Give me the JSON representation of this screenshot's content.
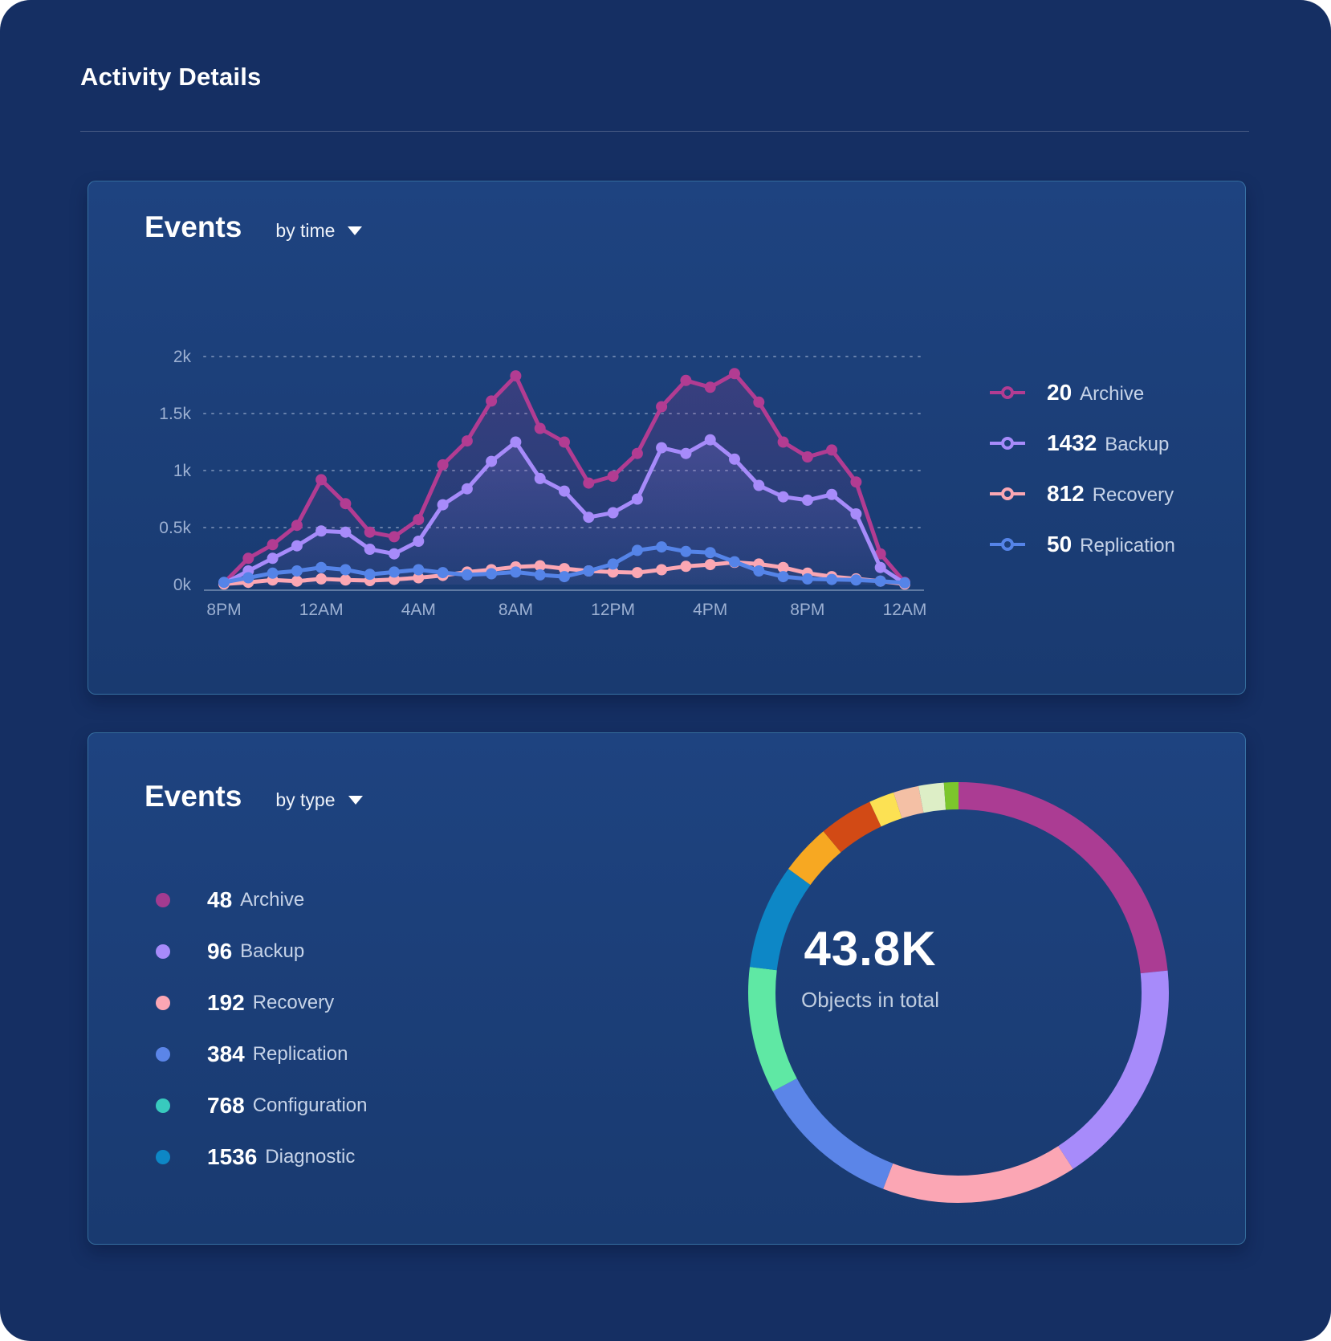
{
  "header": {
    "title": "Activity Details"
  },
  "events_by_time": {
    "title": "Events",
    "subtitle": "by time",
    "legend": [
      {
        "value": "20",
        "label": "Archive",
        "color": "#b23c92"
      },
      {
        "value": "1432",
        "label": "Backup",
        "color": "#a78bfa"
      },
      {
        "value": "812",
        "label": "Recovery",
        "color": "#fba7b3"
      },
      {
        "value": "50",
        "label": "Replication",
        "color": "#5584e8"
      }
    ]
  },
  "events_by_type": {
    "title": "Events",
    "subtitle": "by type",
    "legend": [
      {
        "value": "48",
        "label": "Archive",
        "color": "#a23b90"
      },
      {
        "value": "96",
        "label": "Backup",
        "color": "#a78bfa"
      },
      {
        "value": "192",
        "label": "Recovery",
        "color": "#fba6b4"
      },
      {
        "value": "384",
        "label": "Replication",
        "color": "#5b85e8"
      },
      {
        "value": "768",
        "label": "Configuration",
        "color": "#38cabe"
      },
      {
        "value": "1536",
        "label": "Diagnostic",
        "color": "#0d87c6"
      }
    ],
    "center": {
      "value": "43.8K",
      "label": "Objects in total"
    }
  },
  "chart_data": [
    {
      "type": "line",
      "title": "Events by time",
      "x_tick_labels": [
        "8PM",
        "12AM",
        "4AM",
        "8AM",
        "12PM",
        "4PM",
        "8PM",
        "12AM"
      ],
      "x_points_per_tick": 4,
      "y_tick_labels": [
        "0k",
        "0.5k",
        "1k",
        "1.5k",
        "2k"
      ],
      "ylim": [
        0,
        2000
      ],
      "grid": "dotted-horizontal",
      "legend_position": "right",
      "series": [
        {
          "name": "Archive",
          "color": "#b23c92",
          "values": [
            15,
            230,
            350,
            520,
            920,
            710,
            460,
            420,
            570,
            1050,
            1260,
            1610,
            1830,
            1370,
            1250,
            890,
            950,
            1150,
            1560,
            1790,
            1730,
            1850,
            1600,
            1250,
            1120,
            1180,
            900,
            270,
            20
          ]
        },
        {
          "name": "Backup",
          "color": "#a78bfa",
          "values": [
            10,
            120,
            230,
            340,
            470,
            460,
            310,
            270,
            380,
            700,
            840,
            1080,
            1250,
            930,
            820,
            590,
            630,
            750,
            1200,
            1150,
            1270,
            1100,
            870,
            770,
            740,
            790,
            620,
            150,
            10
          ]
        },
        {
          "name": "Recovery",
          "color": "#fba7b3",
          "values": [
            5,
            20,
            40,
            30,
            50,
            40,
            35,
            45,
            60,
            80,
            110,
            130,
            155,
            165,
            140,
            120,
            110,
            105,
            130,
            160,
            175,
            195,
            180,
            150,
            100,
            70,
            50,
            30,
            5
          ]
        },
        {
          "name": "Replication",
          "color": "#5584e8",
          "values": [
            20,
            60,
            100,
            120,
            150,
            130,
            90,
            110,
            130,
            105,
            85,
            95,
            110,
            85,
            70,
            120,
            180,
            300,
            330,
            290,
            280,
            200,
            120,
            70,
            50,
            45,
            40,
            30,
            15
          ]
        }
      ]
    },
    {
      "type": "donut",
      "title": "Events by type",
      "center_value": "43.8K",
      "center_label": "Objects in total",
      "legend": [
        {
          "name": "Archive",
          "value": 48
        },
        {
          "name": "Backup",
          "value": 96
        },
        {
          "name": "Recovery",
          "value": 192
        },
        {
          "name": "Replication",
          "value": 384
        },
        {
          "name": "Configuration",
          "value": 768
        },
        {
          "name": "Diagnostic",
          "value": 1536
        }
      ],
      "segments_clockwise_from_top": [
        {
          "color": "#ab3c93",
          "degrees": 84
        },
        {
          "color": "#a78bfa",
          "degrees": 63
        },
        {
          "color": "#fba6b4",
          "degrees": 54
        },
        {
          "color": "#5b85e8",
          "degrees": 41
        },
        {
          "color": "#5fe8a4",
          "degrees": 35
        },
        {
          "color": "#0d87c6",
          "degrees": 29
        },
        {
          "color": "#f7a822",
          "degrees": 14
        },
        {
          "color": "#d24a15",
          "degrees": 15
        },
        {
          "color": "#fce153",
          "degrees": 7
        },
        {
          "color": "#f4c0a5",
          "degrees": 7
        },
        {
          "color": "#ddeec6",
          "degrees": 7
        },
        {
          "color": "#7cc62c",
          "degrees": 4
        }
      ]
    }
  ]
}
